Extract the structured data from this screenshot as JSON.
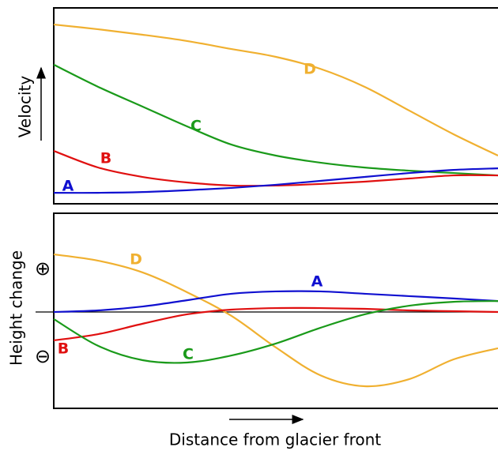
{
  "chart_data": [
    {
      "type": "line",
      "ylabel": "Velocity",
      "x": [
        0,
        10,
        20,
        30,
        40,
        50,
        60,
        70,
        80,
        90,
        100
      ],
      "xlim": [
        0,
        100
      ],
      "ylim": [
        0,
        100
      ],
      "series": [
        {
          "name": "D",
          "color": "#f0b030",
          "values": [
            91.5,
            89.1,
            86.3,
            83.1,
            79,
            75,
            68.9,
            59.7,
            47.6,
            35.5,
            24.6
          ]
        },
        {
          "name": "C",
          "color": "#1a9a1a",
          "values": [
            71,
            59.7,
            49.6,
            39.5,
            30.2,
            24.6,
            21,
            18.5,
            16.9,
            15.7,
            14.5
          ]
        },
        {
          "name": "B",
          "color": "#e01010",
          "values": [
            27,
            18.5,
            13.7,
            10.9,
            9.3,
            9.3,
            10.1,
            11.3,
            12.9,
            14.5,
            14.5
          ]
        },
        {
          "name": "A",
          "color": "#1010d0",
          "values": [
            5.6,
            5.6,
            6,
            6.9,
            8.1,
            9.7,
            11.7,
            13.7,
            15.7,
            17.3,
            18.1
          ]
        }
      ]
    },
    {
      "type": "line",
      "ylabel": "Height change",
      "xlabel": "Distance from glacier front",
      "annotations": [
        "⊕",
        "⊖"
      ],
      "x": [
        0,
        10,
        20,
        30,
        40,
        50,
        60,
        70,
        80,
        90,
        100
      ],
      "xlim": [
        0,
        100
      ],
      "ylim": [
        -50,
        50
      ],
      "series": [
        {
          "name": "D",
          "color": "#f0b030",
          "values": [
            29.4,
            26.2,
            20.2,
            10.1,
            -2,
            -18.1,
            -32.3,
            -37.9,
            -34.3,
            -24.2,
            -18.5
          ]
        },
        {
          "name": "A",
          "color": "#1010d0",
          "values": [
            0,
            0.8,
            2.8,
            6,
            9.3,
            10.5,
            10.5,
            9.3,
            8.1,
            6.9,
            5.6
          ]
        },
        {
          "name": "B",
          "color": "#e01010",
          "values": [
            -14.5,
            -11.3,
            -6,
            -1.2,
            1.2,
            2,
            2,
            1.6,
            0.8,
            0.4,
            0
          ]
        },
        {
          "name": "C",
          "color": "#1a9a1a",
          "values": [
            -3.6,
            -17.3,
            -24.6,
            -25.8,
            -22.2,
            -16.1,
            -8.1,
            -1.2,
            3.2,
            5.2,
            5.6
          ]
        }
      ]
    }
  ]
}
